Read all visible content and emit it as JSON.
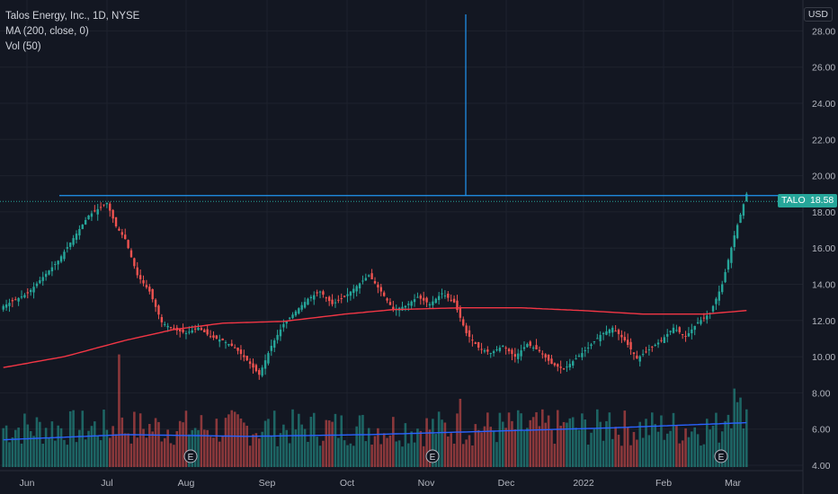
{
  "legend": {
    "title": "Talos Energy, Inc., 1D, NYSE",
    "ma": "MA (200, close, 0)",
    "vol": "Vol (50)"
  },
  "currency": "USD",
  "symbol_tag": "TALO",
  "last_price_label": "18.58",
  "colors": {
    "background": "#131722",
    "up": "#26a69a",
    "down": "#ef5350",
    "ma": "#f23645",
    "vol_ma": "#2962ff",
    "hline": "#2196f3",
    "grid": "#1e222d",
    "text": "#b2b5be"
  },
  "chart_data": {
    "type": "candlestick",
    "ylim": [
      4,
      29
    ],
    "y_ticks": [
      "4.00",
      "6.00",
      "8.00",
      "10.00",
      "12.00",
      "14.00",
      "16.00",
      "18.00",
      "20.00",
      "22.00",
      "24.00",
      "26.00",
      "28.00"
    ],
    "x_ticks": [
      "Jun",
      "Jul",
      "Aug",
      "Sep",
      "Oct",
      "Nov",
      "Dec",
      "2022",
      "Feb",
      "Mar"
    ],
    "last_price": 18.58,
    "horizontal_line": 18.9,
    "earnings_markers": [
      "Aug",
      "Nov",
      "Mar"
    ],
    "earnings_label": "E",
    "series": [
      {
        "name": "Price",
        "keypoints": [
          [
            0,
            12.8
          ],
          [
            8,
            13.5
          ],
          [
            18,
            15.3
          ],
          [
            28,
            17.8
          ],
          [
            34,
            18.5
          ],
          [
            37,
            17.2
          ],
          [
            40,
            16.5
          ],
          [
            44,
            14.5
          ],
          [
            48,
            13.6
          ],
          [
            52,
            11.9
          ],
          [
            56,
            11.5
          ],
          [
            60,
            11.3
          ],
          [
            64,
            11.6
          ],
          [
            68,
            11.1
          ],
          [
            72,
            10.9
          ],
          [
            76,
            10.5
          ],
          [
            80,
            9.8
          ],
          [
            84,
            9.0
          ],
          [
            88,
            10.6
          ],
          [
            92,
            11.8
          ],
          [
            96,
            12.5
          ],
          [
            100,
            13.2
          ],
          [
            104,
            13.6
          ],
          [
            108,
            12.9
          ],
          [
            112,
            13.3
          ],
          [
            116,
            13.9
          ],
          [
            120,
            14.5
          ],
          [
            124,
            13.6
          ],
          [
            128,
            12.6
          ],
          [
            132,
            12.8
          ],
          [
            136,
            13.3
          ],
          [
            140,
            12.9
          ],
          [
            144,
            13.5
          ],
          [
            148,
            13.0
          ],
          [
            152,
            11.3
          ],
          [
            156,
            10.5
          ],
          [
            160,
            10.2
          ],
          [
            164,
            10.6
          ],
          [
            168,
            10.0
          ],
          [
            172,
            10.7
          ],
          [
            176,
            10.3
          ],
          [
            180,
            9.6
          ],
          [
            184,
            9.3
          ],
          [
            188,
            9.9
          ],
          [
            192,
            10.5
          ],
          [
            196,
            11.2
          ],
          [
            200,
            11.6
          ],
          [
            204,
            10.9
          ],
          [
            208,
            9.9
          ],
          [
            212,
            10.4
          ],
          [
            216,
            10.9
          ],
          [
            220,
            11.6
          ],
          [
            224,
            11.1
          ],
          [
            228,
            11.9
          ],
          [
            232,
            12.4
          ],
          [
            236,
            14.0
          ],
          [
            240,
            16.7
          ],
          [
            244,
            19.0
          ]
        ]
      },
      {
        "name": "MA (200, close, 0)",
        "keypoints": [
          [
            0,
            9.4
          ],
          [
            20,
            10.0
          ],
          [
            40,
            10.9
          ],
          [
            56,
            11.5
          ],
          [
            72,
            11.85
          ],
          [
            92,
            11.95
          ],
          [
            112,
            12.35
          ],
          [
            128,
            12.6
          ],
          [
            150,
            12.7
          ],
          [
            170,
            12.7
          ],
          [
            190,
            12.55
          ],
          [
            210,
            12.35
          ],
          [
            230,
            12.35
          ],
          [
            244,
            12.55
          ]
        ]
      },
      {
        "name": "Vol (50)",
        "keypoints": [
          [
            0,
            0.8
          ],
          [
            40,
            0.95
          ],
          [
            80,
            0.9
          ],
          [
            120,
            0.95
          ],
          [
            160,
            1.05
          ],
          [
            200,
            1.15
          ],
          [
            244,
            1.3
          ]
        ]
      }
    ]
  }
}
